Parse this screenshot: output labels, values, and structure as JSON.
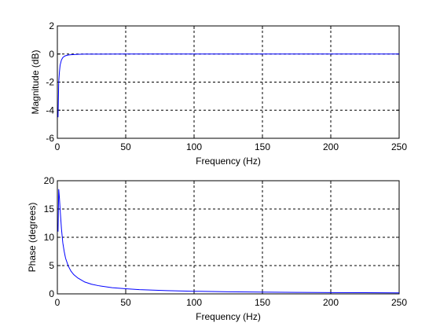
{
  "chart_data": [
    {
      "type": "line",
      "xlabel": "Frequency (Hz)",
      "ylabel": "Magnitude (dB)",
      "xlim": [
        0,
        250
      ],
      "ylim": [
        -6,
        2
      ],
      "xticks": [
        "0",
        "50",
        "100",
        "150",
        "200",
        "250"
      ],
      "yticks": [
        "-6",
        "-4",
        "-2",
        "0",
        "2"
      ],
      "grid": true,
      "line_color": "#0000ff",
      "series": [
        {
          "x": [
            0.5,
            1,
            1.5,
            2,
            3,
            4,
            5,
            6,
            8,
            10,
            15,
            20,
            30,
            50,
            100,
            150,
            200,
            250
          ],
          "y": [
            -4.5,
            -2.0,
            -1.3,
            -0.8,
            -0.42,
            -0.25,
            -0.17,
            -0.12,
            -0.07,
            -0.05,
            -0.02,
            -0.01,
            -0.006,
            -0.002,
            -0.001,
            0,
            0,
            0
          ]
        }
      ]
    },
    {
      "type": "line",
      "xlabel": "Frequency (Hz)",
      "ylabel": "Phase (degrees)",
      "xlim": [
        0,
        250
      ],
      "ylim": [
        0,
        20
      ],
      "xticks": [
        "0",
        "50",
        "100",
        "150",
        "200",
        "250"
      ],
      "yticks": [
        "0",
        "5",
        "10",
        "15",
        "20"
      ],
      "grid": true,
      "line_color": "#0000ff",
      "series": [
        {
          "x": [
            0.5,
            1,
            1.5,
            2,
            3,
            4,
            5,
            6,
            8,
            10,
            12,
            15,
            20,
            25,
            30,
            40,
            50,
            60,
            80,
            100,
            125,
            150,
            175,
            200,
            225,
            250
          ],
          "y": [
            11,
            18.5,
            17,
            15,
            11.5,
            9,
            7.5,
            6.3,
            4.9,
            4.0,
            3.4,
            2.8,
            2.1,
            1.7,
            1.45,
            1.1,
            0.9,
            0.75,
            0.57,
            0.46,
            0.37,
            0.31,
            0.26,
            0.23,
            0.2,
            0.18
          ]
        }
      ]
    }
  ]
}
